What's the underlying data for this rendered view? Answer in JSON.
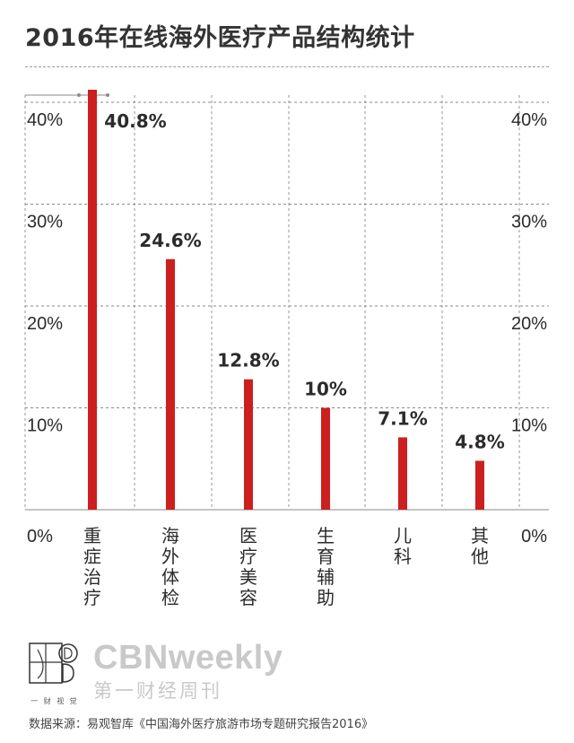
{
  "title": "2016年在线海外医疗产品结构统计",
  "chart_data": {
    "type": "bar",
    "title": "2016年在线海外医疗产品结构统计",
    "categories": [
      "重症治疗",
      "海外体检",
      "医疗美容",
      "生育辅助",
      "儿科",
      "其他"
    ],
    "values": [
      40.8,
      24.6,
      12.8,
      10,
      7.1,
      4.8
    ],
    "value_labels": [
      "40.8%",
      "24.6%",
      "12.8%",
      "10%",
      "7.1%",
      "4.8%"
    ],
    "y_ticks": [
      "0%",
      "10%",
      "20%",
      "30%",
      "40%"
    ],
    "y_tick_values": [
      0,
      10,
      20,
      30,
      40
    ],
    "ylim": [
      0,
      41
    ],
    "grid": true,
    "colors": {
      "bar": "#cc1f1f",
      "grid": "#8a8a8a",
      "text": "#2b2b2b"
    }
  },
  "brand": {
    "english": "CBNweekly",
    "chinese": "第一财经周刊",
    "logo_caption": "一 财 视 觉"
  },
  "source": "数据来源：易观智库《中国海外医疗旅游市场专题研究报告2016》"
}
